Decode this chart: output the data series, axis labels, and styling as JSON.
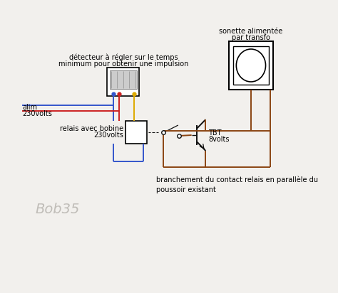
{
  "bg_color": "#f2f0ed",
  "line_color_blue": "#3355cc",
  "line_color_red": "#cc2222",
  "line_color_yellow": "#ddaa00",
  "line_color_brown": "#8B4513",
  "line_color_black": "#111111",
  "detector_label1": "détecteur à régler sur le temps",
  "detector_label2": "minimum pour obtenir une impulsion",
  "relay_label1": "relais avec bobine",
  "relay_label2": "230volts",
  "alim_label1": "alim",
  "alim_label2": "230volts",
  "sonette_label1": "sonette alimentée",
  "sonette_label2": "par transfo",
  "tbt_label1": "TBT",
  "tbt_label2": "8volts",
  "branchement_label": "branchement du contact relais en parallèle du\npoussoir existant",
  "watermark": "Bob35",
  "font_size_label": 7.0,
  "font_size_watermark": 14
}
